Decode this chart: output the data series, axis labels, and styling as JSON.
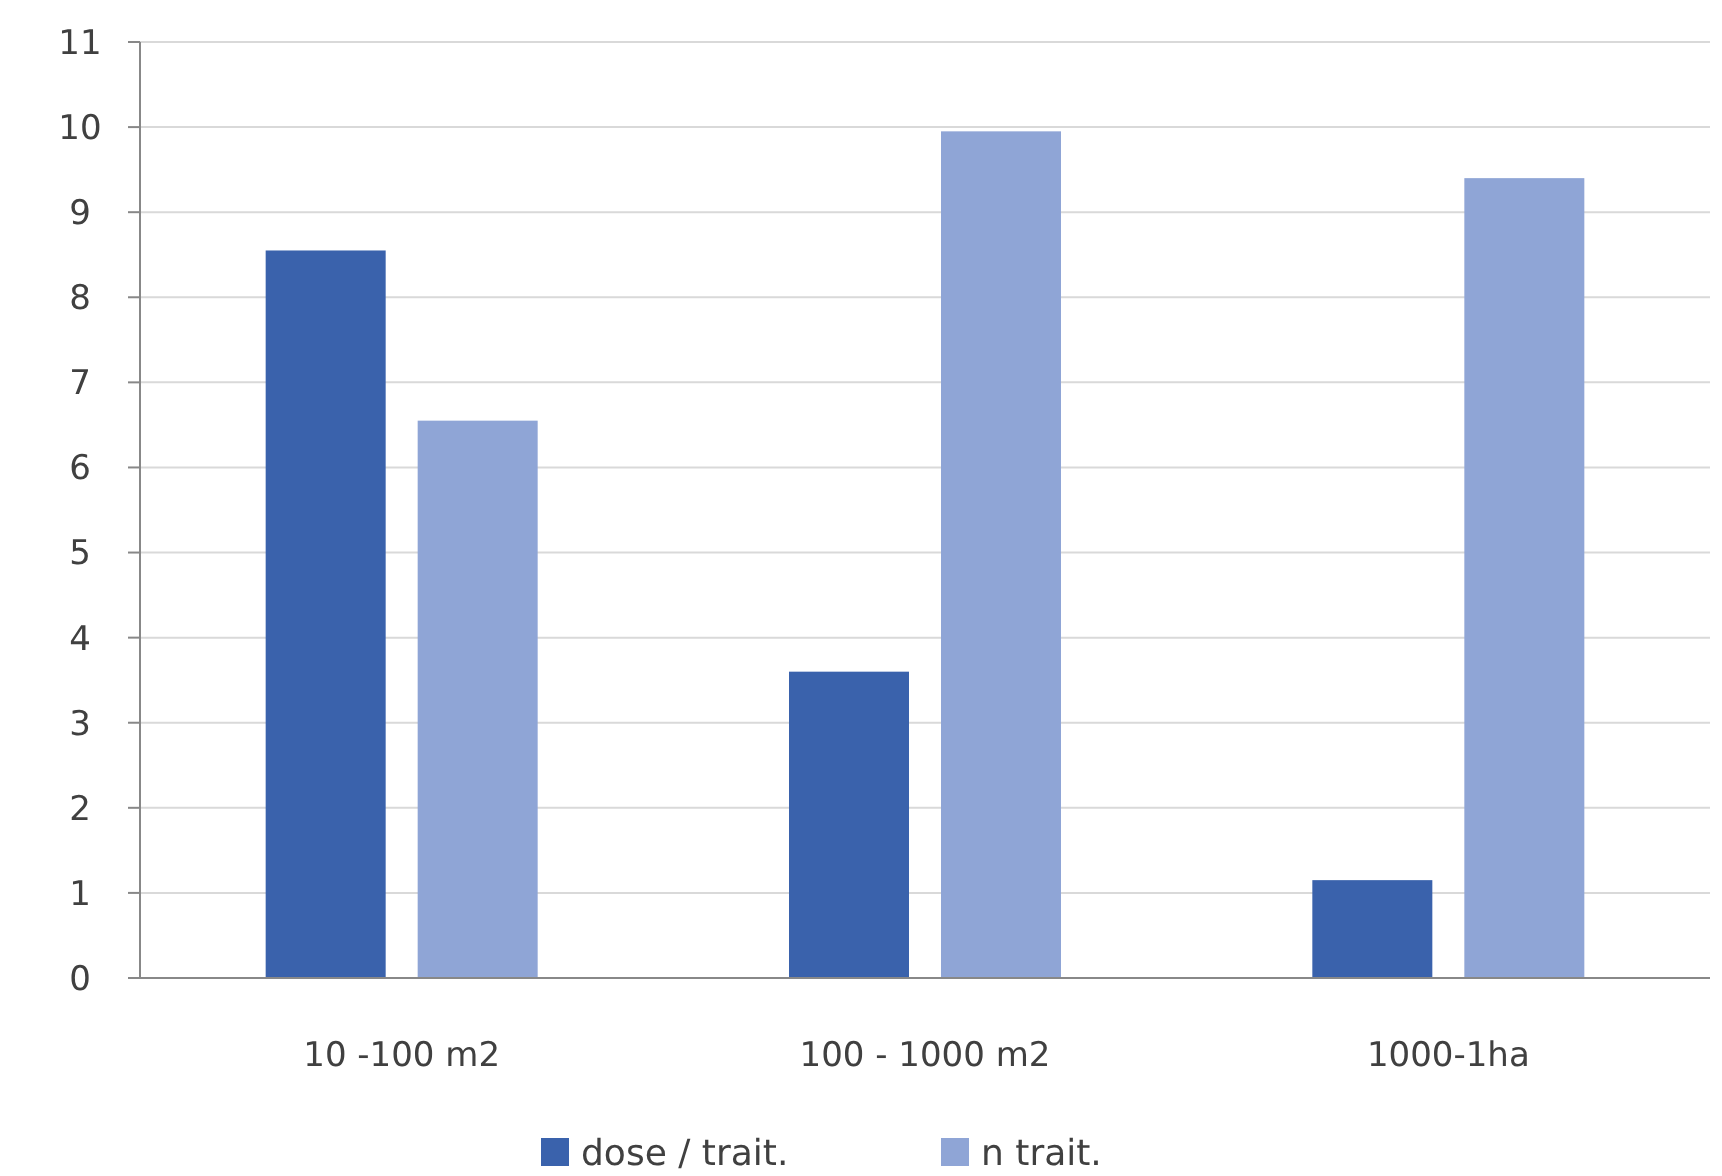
{
  "chart_data": {
    "type": "bar",
    "categories": [
      "10 -100 m2",
      "100 - 1000 m2",
      "1000-1ha"
    ],
    "series": [
      {
        "name": "dose / trait.",
        "color": "#3a62ac",
        "values": [
          8.55,
          3.6,
          1.15
        ]
      },
      {
        "name": "n trait.",
        "color": "#8fa5d6",
        "values": [
          6.55,
          9.95,
          9.4
        ]
      }
    ],
    "ylim": [
      0,
      11
    ],
    "yticks": [
      0,
      1,
      2,
      3,
      4,
      5,
      6,
      7,
      8,
      9,
      10,
      11
    ],
    "grid": "y",
    "legend": "bottom"
  }
}
